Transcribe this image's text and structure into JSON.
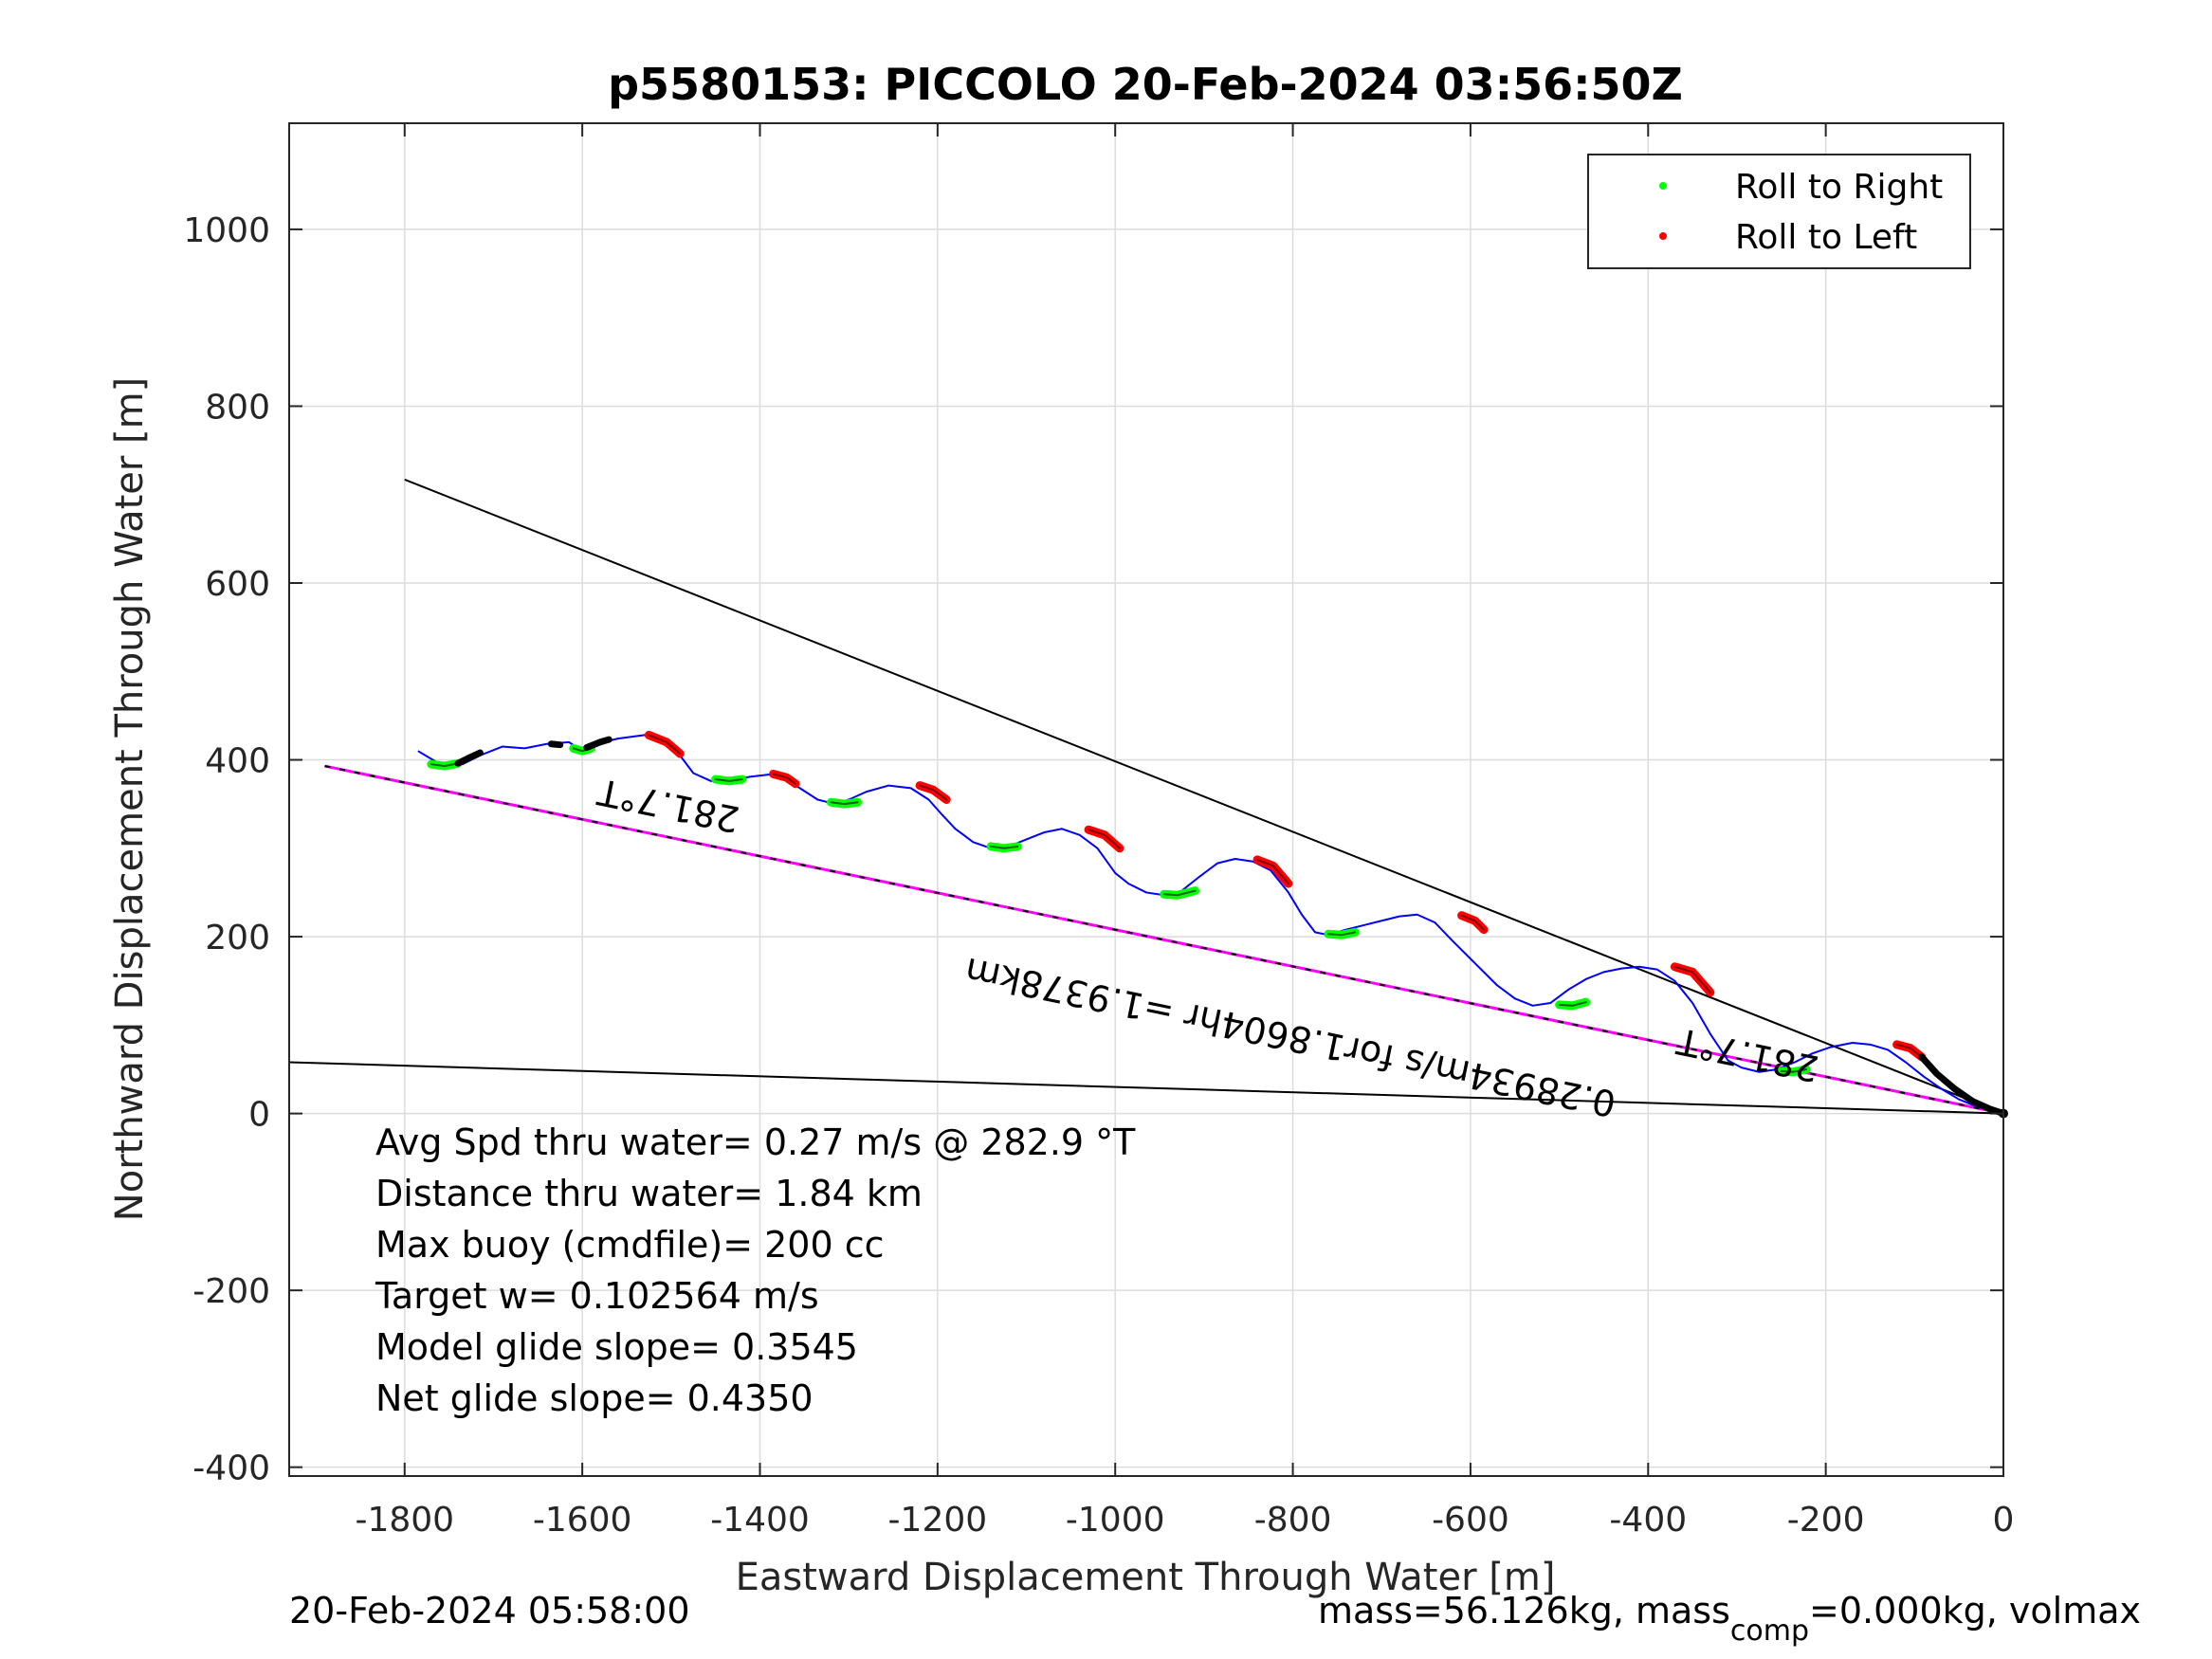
{
  "chart_data": {
    "type": "line",
    "title": "p5580153: PICCOLO 20-Feb-2024 03:56:50Z",
    "xlabel": "Eastward Displacement Through Water [m]",
    "ylabel": "Northward Displacement Through Water [m]",
    "xlim": [
      -1930,
      0
    ],
    "ylim": [
      -410,
      1120
    ],
    "xticks": [
      -1800,
      -1600,
      -1400,
      -1200,
      -1000,
      -800,
      -600,
      -400,
      -200,
      0
    ],
    "yticks": [
      -400,
      -200,
      0,
      200,
      400,
      600,
      800,
      1000
    ],
    "grid": true,
    "legend": {
      "position": "top-right",
      "entries": [
        {
          "name": "Roll to Right",
          "color": "#00ff00"
        },
        {
          "name": "Roll to Left",
          "color": "#ff0000"
        }
      ]
    },
    "track": {
      "color": "#0000ff",
      "x": [
        -1785,
        -1765,
        -1750,
        -1735,
        -1715,
        -1690,
        -1665,
        -1640,
        -1615,
        -1600,
        -1585,
        -1560,
        -1530,
        -1510,
        -1490,
        -1475,
        -1455,
        -1435,
        -1410,
        -1385,
        -1370,
        -1355,
        -1335,
        -1315,
        -1300,
        -1280,
        -1255,
        -1230,
        -1210,
        -1195,
        -1180,
        -1160,
        -1140,
        -1120,
        -1100,
        -1080,
        -1060,
        -1040,
        -1020,
        -1000,
        -985,
        -965,
        -945,
        -925,
        -905,
        -885,
        -865,
        -845,
        -825,
        -805,
        -790,
        -775,
        -760,
        -740,
        -720,
        -700,
        -680,
        -660,
        -640,
        -620,
        -600,
        -585,
        -570,
        -550,
        -530,
        -510,
        -490,
        -470,
        -450,
        -430,
        -410,
        -390,
        -370,
        -350,
        -330,
        -310,
        -295,
        -275,
        -255,
        -235,
        -215,
        -195,
        -170,
        -150,
        -130,
        -110,
        -90,
        -70,
        -50,
        -30,
        -10,
        0
      ],
      "y": [
        410,
        398,
        393,
        395,
        405,
        415,
        413,
        418,
        420,
        410,
        418,
        424,
        428,
        422,
        405,
        385,
        376,
        377,
        381,
        384,
        378,
        368,
        355,
        350,
        355,
        364,
        371,
        368,
        355,
        338,
        322,
        307,
        300,
        302,
        310,
        318,
        322,
        315,
        300,
        272,
        260,
        250,
        247,
        252,
        268,
        283,
        288,
        285,
        275,
        250,
        225,
        205,
        202,
        208,
        213,
        218,
        223,
        225,
        216,
        195,
        175,
        160,
        145,
        130,
        122,
        125,
        140,
        152,
        160,
        164,
        166,
        163,
        150,
        125,
        90,
        60,
        52,
        47,
        50,
        58,
        68,
        75,
        80,
        78,
        72,
        58,
        42,
        28,
        16,
        8,
        3,
        0
      ],
      "raw_labels": []
    },
    "roll_right_segments": [
      {
        "x": [
          -1770,
          -1755,
          -1740
        ],
        "y": [
          395,
          393,
          396
        ]
      },
      {
        "x": [
          -1610,
          -1600,
          -1590
        ],
        "y": [
          413,
          410,
          413
        ]
      },
      {
        "x": [
          -1450,
          -1435,
          -1420
        ],
        "y": [
          378,
          376,
          378
        ]
      },
      {
        "x": [
          -1320,
          -1305,
          -1290
        ],
        "y": [
          352,
          350,
          352
        ]
      },
      {
        "x": [
          -1140,
          -1125,
          -1110
        ],
        "y": [
          302,
          300,
          302
        ]
      },
      {
        "x": [
          -945,
          -930,
          -910
        ],
        "y": [
          248,
          247,
          252
        ]
      },
      {
        "x": [
          -760,
          -745,
          -730
        ],
        "y": [
          203,
          202,
          205
        ]
      },
      {
        "x": [
          -500,
          -485,
          -470
        ],
        "y": [
          123,
          122,
          126
        ]
      },
      {
        "x": [
          -250,
          -237,
          -222
        ],
        "y": [
          48,
          47,
          50
        ]
      }
    ],
    "roll_left_segments": [
      {
        "x": [
          -1525,
          -1505,
          -1490
        ],
        "y": [
          428,
          420,
          407
        ]
      },
      {
        "x": [
          -1385,
          -1370,
          -1360
        ],
        "y": [
          384,
          380,
          373
        ]
      },
      {
        "x": [
          -1220,
          -1205,
          -1190
        ],
        "y": [
          371,
          366,
          355
        ]
      },
      {
        "x": [
          -1030,
          -1012,
          -995
        ],
        "y": [
          321,
          315,
          300
        ]
      },
      {
        "x": [
          -840,
          -822,
          -805
        ],
        "y": [
          287,
          280,
          260
        ]
      },
      {
        "x": [
          -610,
          -595,
          -585
        ],
        "y": [
          224,
          218,
          208
        ]
      },
      {
        "x": [
          -370,
          -350,
          -330
        ],
        "y": [
          166,
          160,
          137
        ]
      },
      {
        "x": [
          -120,
          -105,
          -92
        ],
        "y": [
          78,
          74,
          64
        ]
      }
    ],
    "black_segments": [
      {
        "x": [
          -1740,
          -1730,
          -1715
        ],
        "y": [
          396,
          401,
          408
        ]
      },
      {
        "x": [
          -1635,
          -1625
        ],
        "y": [
          418,
          417
        ]
      },
      {
        "x": [
          -1595,
          -1580,
          -1570
        ],
        "y": [
          414,
          420,
          423
        ]
      },
      {
        "x": [
          -92,
          -75,
          -55,
          -35,
          -15,
          0
        ],
        "y": [
          64,
          45,
          28,
          14,
          5,
          0
        ]
      }
    ],
    "reference_lines": [
      {
        "name": "heading_upper",
        "color": "#000000",
        "x": [
          -1800,
          0
        ],
        "y": [
          717,
          0
        ]
      },
      {
        "name": "heading_lower",
        "color": "#000000",
        "x": [
          -1930,
          0
        ],
        "y": [
          58,
          0
        ]
      },
      {
        "name": "net_line",
        "color": "#ff00ff",
        "x": [
          -1890,
          0
        ],
        "y": [
          393,
          0
        ]
      },
      {
        "name": "net_line_black",
        "color": "#000000",
        "x": [
          -1890,
          0
        ],
        "y": [
          393,
          0
        ]
      }
    ],
    "rotated_annotations": [
      {
        "text": "281.7°T",
        "x": -1500,
        "y": 362,
        "angle": 11.7
      },
      {
        "text": "281.7°T",
        "x": -285,
        "y": 80,
        "angle": 11.7
      },
      {
        "text": "0.28934m/s for1.8604hr =1.9378km",
        "x": -800,
        "y": 100,
        "angle": 11.7
      }
    ],
    "annotations": [
      "Avg Spd thru water=  0.27 m/s @ 282.9 °T",
      "Distance thru water=  1.84 km",
      "Max buoy (cmdfile)= 200 cc",
      "Target w= 0.102564 m/s",
      "Model glide slope= 0.3545",
      "Net glide slope= 0.4350"
    ]
  },
  "footer": {
    "left": "20-Feb-2024 05:58:00",
    "right_main": "mass=56.126kg, mass",
    "right_sub": "comp",
    "right_tail": "=0.000kg, volmax"
  }
}
